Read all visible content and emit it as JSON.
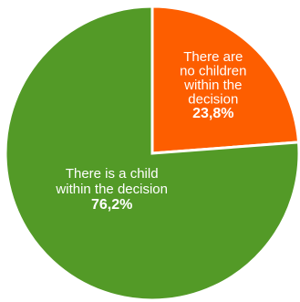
{
  "chart_data": {
    "type": "pie",
    "categories": [
      "There are no children within the decision",
      "There is a child within the decision"
    ],
    "values": [
      23.8,
      76.2
    ],
    "value_labels": [
      "23,8%",
      "76,2%"
    ],
    "label_lines": [
      [
        "There are",
        "no children",
        "within the",
        "decision"
      ],
      [
        "There is a child",
        "within the decision"
      ]
    ],
    "colors": [
      "#fd5e00",
      "#539a27"
    ],
    "title": "",
    "legend": "none"
  }
}
